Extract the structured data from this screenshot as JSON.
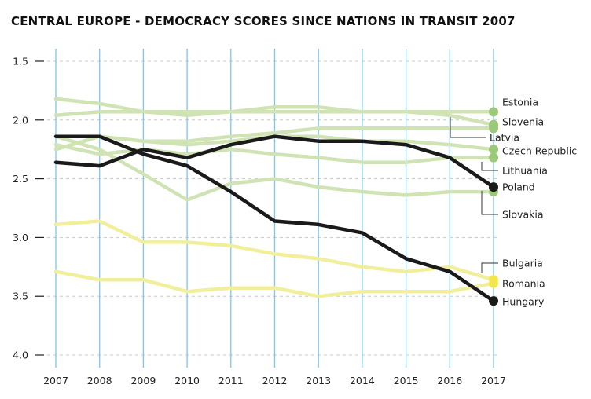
{
  "chart_data": {
    "type": "line",
    "title": "CENTRAL EUROPE - DEMOCRACY SCORES SINCE NATIONS IN TRANSIT 2007",
    "xlabel": "",
    "ylabel": "",
    "x": [
      2007,
      2008,
      2009,
      2010,
      2011,
      2012,
      2013,
      2014,
      2015,
      2016,
      2017
    ],
    "ylim": [
      1.5,
      4.0
    ],
    "y_inverted": true,
    "y_ticks": [
      "1.5",
      "2.0",
      "2.5",
      "3.0",
      "3.5",
      "4.0"
    ],
    "y_tick_values": [
      1.5,
      2.0,
      2.5,
      3.0,
      3.5,
      4.0
    ],
    "grid": {
      "horizontal": "dashed",
      "vertical": "solid"
    },
    "colors": {
      "vertical_grid": "#7cc7ec",
      "horizontal_grid": "#c8c8c8",
      "green_line": "#cfe3b4",
      "green_dot": "#9bc97a",
      "yellow_line": "#f2ef9c",
      "yellow_dot": "#f3e64d",
      "dark": "#1a1a1a",
      "leader": "#333333"
    },
    "series": [
      {
        "name": "Estonia",
        "group": "green",
        "values": [
          1.96,
          1.93,
          1.93,
          1.93,
          1.93,
          1.93,
          1.93,
          1.93,
          1.93,
          1.93,
          1.93
        ]
      },
      {
        "name": "Slovenia",
        "group": "green",
        "values": [
          1.82,
          1.86,
          1.93,
          1.96,
          1.93,
          1.89,
          1.89,
          1.93,
          1.93,
          1.96,
          2.04
        ]
      },
      {
        "name": "Latvia",
        "group": "green",
        "values": [
          2.14,
          2.14,
          2.18,
          2.18,
          2.14,
          2.11,
          2.07,
          2.07,
          2.07,
          2.07,
          2.07
        ]
      },
      {
        "name": "Czech Republic",
        "group": "green",
        "values": [
          2.25,
          2.14,
          2.18,
          2.21,
          2.18,
          2.14,
          2.14,
          2.18,
          2.18,
          2.21,
          2.25
        ]
      },
      {
        "name": "Lithuania",
        "group": "green",
        "values": [
          2.21,
          2.29,
          2.25,
          2.29,
          2.25,
          2.29,
          2.32,
          2.36,
          2.36,
          2.32,
          2.32
        ]
      },
      {
        "name": "Slovakia",
        "group": "green",
        "values": [
          2.14,
          2.25,
          2.46,
          2.68,
          2.54,
          2.5,
          2.57,
          2.61,
          2.64,
          2.61,
          2.61
        ]
      },
      {
        "name": "Poland",
        "group": "dark",
        "values": [
          2.36,
          2.39,
          2.25,
          2.32,
          2.21,
          2.14,
          2.18,
          2.18,
          2.21,
          2.32,
          2.57
        ]
      },
      {
        "name": "Hungary",
        "group": "dark",
        "values": [
          2.14,
          2.14,
          2.29,
          2.39,
          2.61,
          2.86,
          2.89,
          2.96,
          3.18,
          3.29,
          3.54
        ]
      },
      {
        "name": "Bulgaria",
        "group": "yellow",
        "values": [
          2.89,
          2.86,
          3.04,
          3.04,
          3.07,
          3.14,
          3.18,
          3.25,
          3.29,
          3.25,
          3.36
        ]
      },
      {
        "name": "Romania",
        "group": "yellow",
        "values": [
          3.29,
          3.36,
          3.36,
          3.46,
          3.43,
          3.43,
          3.5,
          3.46,
          3.46,
          3.46,
          3.39
        ]
      }
    ]
  }
}
